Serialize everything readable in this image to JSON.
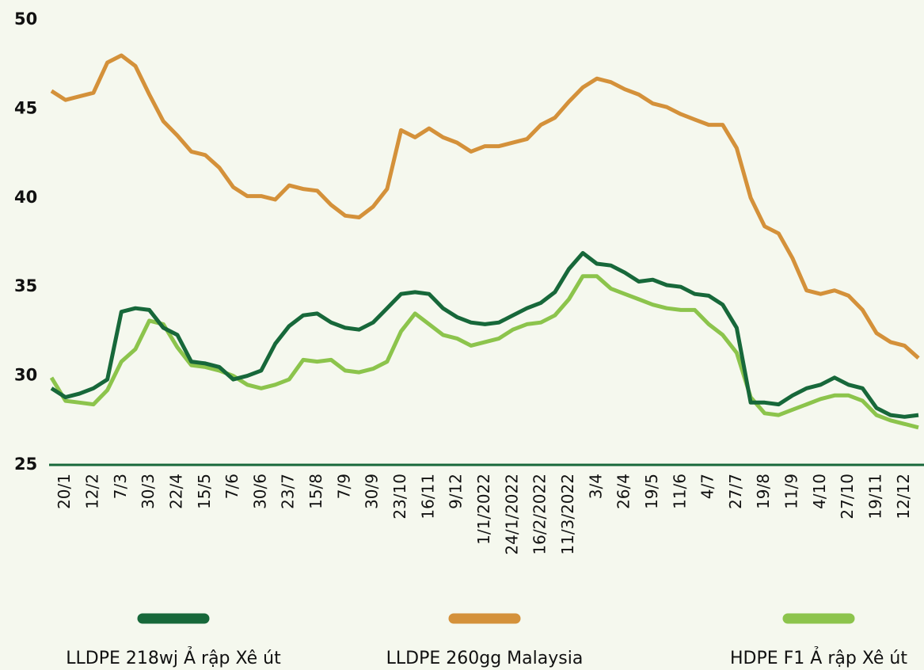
{
  "chart_data": {
    "type": "line",
    "categories": [
      null,
      "20/1",
      null,
      "12/2",
      null,
      "7/3",
      null,
      "30/3",
      null,
      "22/4",
      null,
      "15/5",
      null,
      "7/6",
      null,
      "30/6",
      null,
      "23/7",
      null,
      "15/8",
      null,
      "7/9",
      null,
      "30/9",
      null,
      "23/10",
      null,
      "16/11",
      null,
      "9/12",
      null,
      "1/1/2022",
      null,
      "24/1/2022",
      null,
      "16/2/2022",
      null,
      "11/3/2022",
      null,
      "3/4",
      null,
      "26/4",
      null,
      "19/5",
      null,
      "11/6",
      null,
      "4/7",
      null,
      "27/7",
      null,
      "19/8",
      null,
      "11/9",
      null,
      "4/10",
      null,
      "27/10",
      null,
      "19/11",
      null,
      "12/12",
      null
    ],
    "series": [
      {
        "name": "LLDPE 218wj Ả rập Xê út",
        "color": "#17683a",
        "values": [
          29.3,
          28.8,
          29.0,
          29.3,
          29.8,
          33.6,
          33.8,
          33.7,
          32.7,
          32.3,
          30.8,
          30.7,
          30.5,
          29.8,
          30.0,
          30.3,
          31.8,
          32.8,
          33.4,
          33.5,
          33.0,
          32.7,
          32.6,
          33.0,
          33.8,
          34.6,
          34.7,
          34.6,
          33.8,
          33.3,
          33.0,
          32.9,
          33.0,
          33.4,
          33.8,
          34.1,
          34.7,
          36.0,
          36.9,
          36.3,
          36.2,
          35.8,
          35.3,
          35.4,
          35.1,
          35.0,
          34.6,
          34.5,
          34.0,
          32.7,
          28.5,
          28.5,
          28.4,
          28.9,
          29.3,
          29.5,
          29.9,
          29.5,
          29.3,
          28.2,
          27.8,
          27.7,
          27.8
        ]
      },
      {
        "name": "LLDPE 260gg Malaysia",
        "color": "#d4913a",
        "values": [
          46.0,
          45.5,
          45.7,
          45.9,
          47.6,
          48.0,
          47.4,
          45.8,
          44.3,
          43.5,
          42.6,
          42.4,
          41.7,
          40.6,
          40.1,
          40.1,
          39.9,
          40.7,
          40.5,
          40.4,
          39.6,
          39.0,
          38.9,
          39.5,
          40.5,
          43.8,
          43.4,
          43.9,
          43.4,
          43.1,
          42.6,
          42.9,
          42.9,
          43.1,
          43.3,
          44.1,
          44.5,
          45.4,
          46.2,
          46.7,
          46.5,
          46.1,
          45.8,
          45.3,
          45.1,
          44.7,
          44.4,
          44.1,
          44.1,
          42.8,
          40.0,
          38.4,
          38.0,
          36.6,
          34.8,
          34.6,
          34.8,
          34.5,
          33.7,
          32.4,
          31.9,
          31.7,
          31.0
        ]
      },
      {
        "name": "HDPE F1 Ả rập Xê út",
        "color": "#8cc44c",
        "values": [
          29.9,
          28.6,
          28.5,
          28.4,
          29.2,
          30.8,
          31.5,
          33.1,
          32.9,
          31.6,
          30.6,
          30.5,
          30.3,
          30.0,
          29.5,
          29.3,
          29.5,
          29.8,
          30.9,
          30.8,
          30.9,
          30.3,
          30.2,
          30.4,
          30.8,
          32.5,
          33.5,
          32.9,
          32.3,
          32.1,
          31.7,
          31.9,
          32.1,
          32.6,
          32.9,
          33.0,
          33.4,
          34.3,
          35.6,
          35.6,
          34.9,
          34.6,
          34.3,
          34.0,
          33.8,
          33.7,
          33.7,
          32.9,
          32.3,
          31.3,
          28.8,
          27.9,
          27.8,
          28.1,
          28.4,
          28.7,
          28.9,
          28.9,
          28.6,
          27.8,
          27.5,
          27.3,
          27.1
        ]
      }
    ],
    "ylim": [
      25,
      50
    ],
    "yticks": [
      25,
      30,
      35,
      40,
      45,
      50
    ],
    "grid": false,
    "legend": "bottom"
  }
}
